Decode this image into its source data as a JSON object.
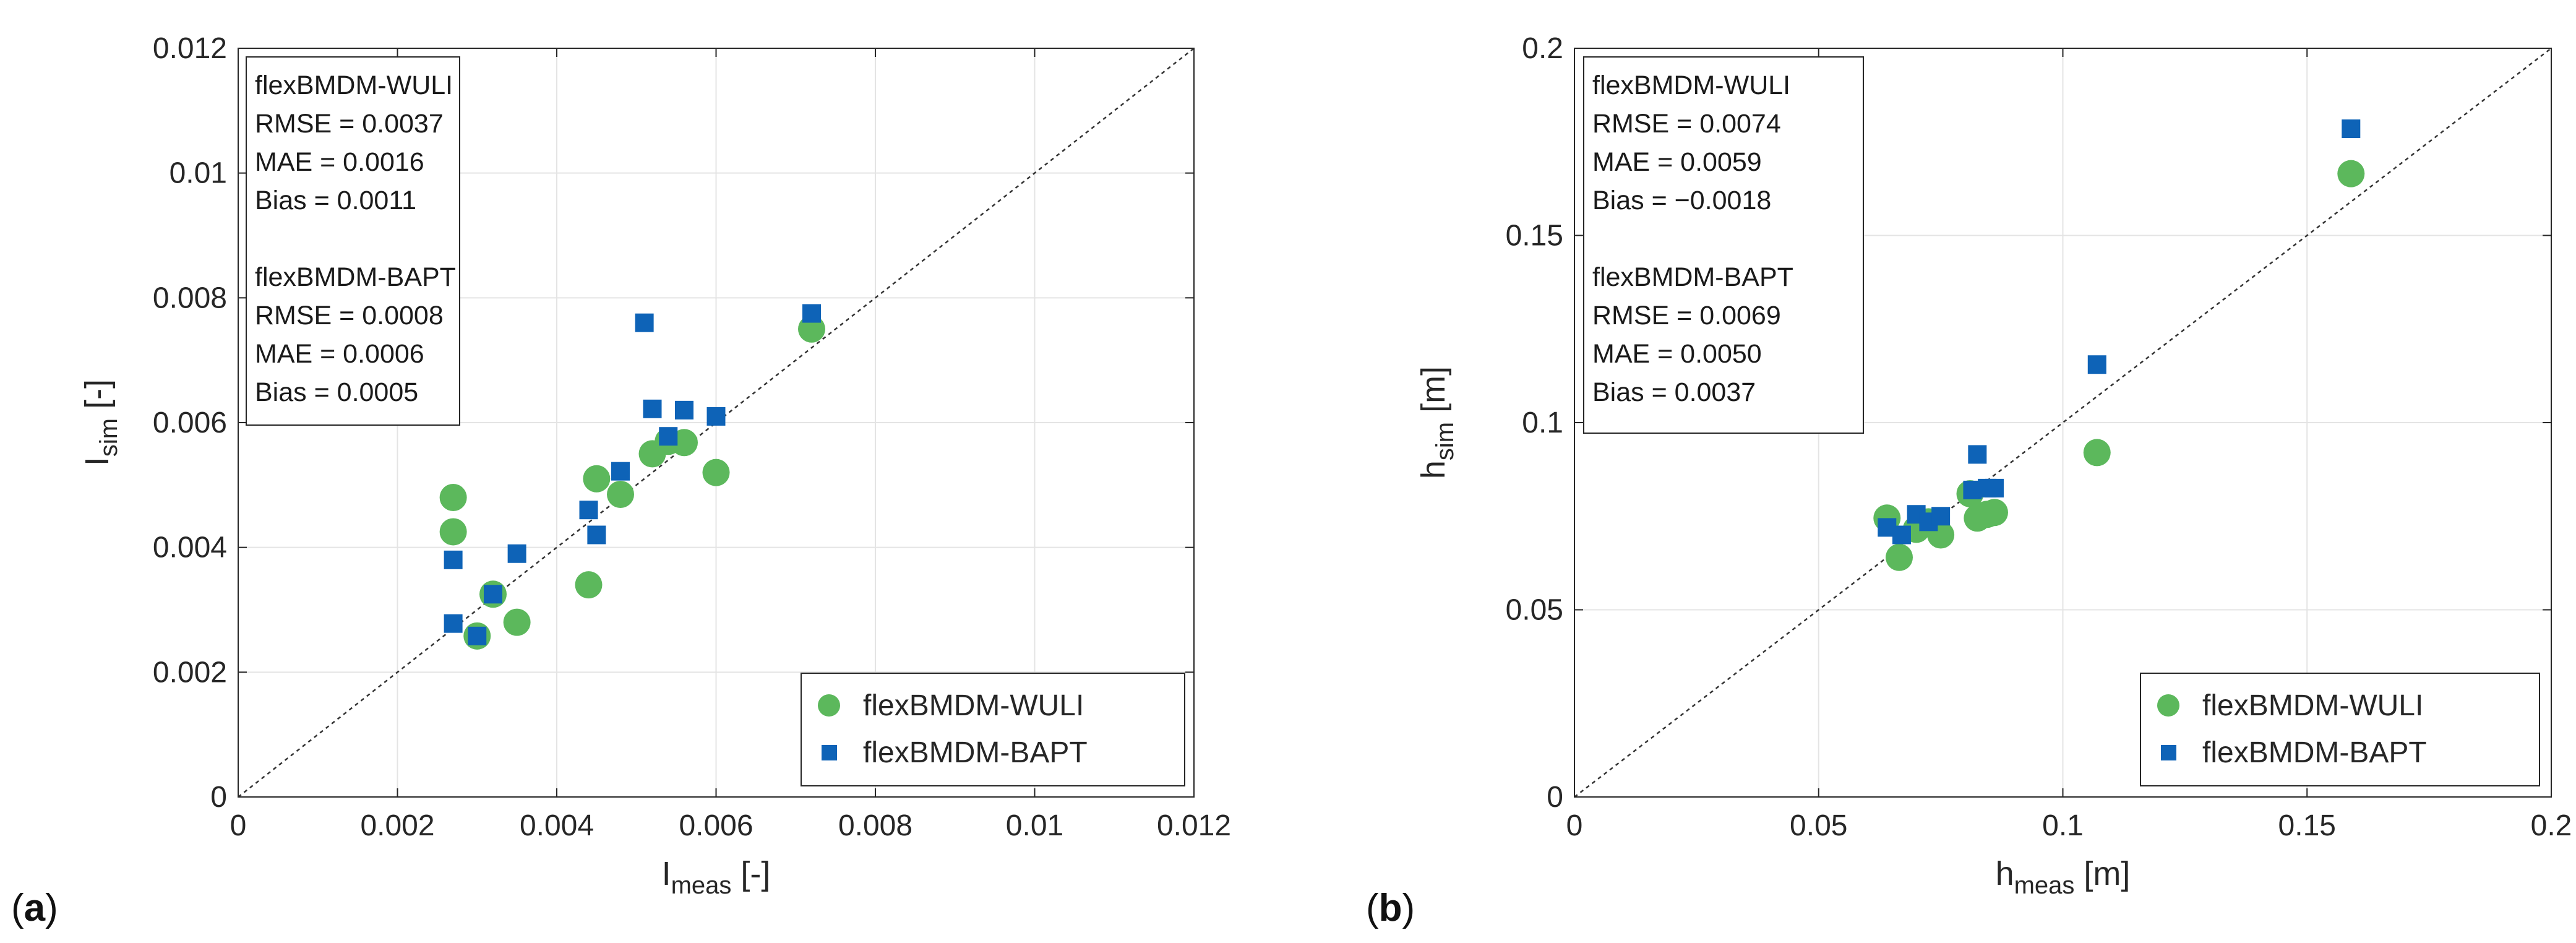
{
  "colors": {
    "wuli": "#5cb85c",
    "bapt": "#0e63b7",
    "grid": "#e4e4e4",
    "axis": "#262626",
    "diag": "#333333"
  },
  "labels": {
    "panel_a": "a",
    "panel_b": "b",
    "paren_open": "(",
    "paren_close": ")"
  },
  "chart_data": [
    {
      "type": "scatter",
      "panel": "a",
      "xlim": [
        0,
        0.012
      ],
      "ylim": [
        0,
        0.012
      ],
      "xticks": [
        "0",
        "0.002",
        "0.004",
        "0.006",
        "0.008",
        "0.01",
        "0.012"
      ],
      "yticks": [
        "0",
        "0.002",
        "0.004",
        "0.006",
        "0.008",
        "0.01",
        "0.012"
      ],
      "xlabel": {
        "base": "I",
        "sub": "meas",
        "unit": " [-]"
      },
      "ylabel": {
        "base": "I",
        "sub": "sim",
        "unit": " [-]"
      },
      "grid": true,
      "diagonal": "1:1 dashed",
      "stats": {
        "wuli_title": "flexBMDM-WULI",
        "wuli_rmse": "RMSE = 0.0037",
        "wuli_mae": "MAE  = 0.0016",
        "wuli_bias": "Bias = 0.0011",
        "bapt_title": "flexBMDM-BAPT",
        "bapt_rmse": "RMSE = 0.0008",
        "bapt_mae": "MAE  = 0.0006",
        "bapt_bias": "Bias = 0.0005"
      },
      "legend": {
        "placement": "bottom-right",
        "wuli": "flexBMDM-WULI",
        "bapt": "flexBMDM-BAPT"
      },
      "series": [
        {
          "name": "flexBMDM-WULI",
          "marker": "circle",
          "points": [
            [
              0.0027,
              0.0048
            ],
            [
              0.0027,
              0.00425
            ],
            [
              0.003,
              0.00258
            ],
            [
              0.0032,
              0.00325
            ],
            [
              0.0035,
              0.0028
            ],
            [
              0.0044,
              0.0034
            ],
            [
              0.0045,
              0.0051
            ],
            [
              0.0048,
              0.00485
            ],
            [
              0.0052,
              0.0055
            ],
            [
              0.0054,
              0.0057
            ],
            [
              0.0056,
              0.00568
            ],
            [
              0.006,
              0.0052
            ],
            [
              0.0072,
              0.0075
            ]
          ]
        },
        {
          "name": "flexBMDM-BAPT",
          "marker": "square",
          "points": [
            [
              0.0027,
              0.0038
            ],
            [
              0.0027,
              0.00278
            ],
            [
              0.003,
              0.00258
            ],
            [
              0.0032,
              0.00325
            ],
            [
              0.0035,
              0.0039
            ],
            [
              0.0044,
              0.0046
            ],
            [
              0.0045,
              0.0042
            ],
            [
              0.0048,
              0.00522
            ],
            [
              0.0051,
              0.0076
            ],
            [
              0.0052,
              0.00622
            ],
            [
              0.0054,
              0.00578
            ],
            [
              0.0056,
              0.0062
            ],
            [
              0.006,
              0.0061
            ],
            [
              0.0072,
              0.00775
            ]
          ]
        }
      ]
    },
    {
      "type": "scatter",
      "panel": "b",
      "xlim": [
        0,
        0.2
      ],
      "ylim": [
        0,
        0.2
      ],
      "xticks": [
        "0",
        "0.05",
        "0.1",
        "0.15",
        "0.2"
      ],
      "yticks": [
        "0",
        "0.05",
        "0.1",
        "0.15",
        "0.2"
      ],
      "xlabel": {
        "base": "h",
        "sub": "meas",
        "unit": " [m]"
      },
      "ylabel": {
        "base": "h",
        "sub": "sim",
        "unit": " [m]"
      },
      "grid": true,
      "diagonal": "1:1 dashed",
      "stats": {
        "wuli_title": "flexBMDM-WULI",
        "wuli_rmse": "RMSE = 0.0074",
        "wuli_mae": "MAE  = 0.0059",
        "wuli_bias": "Bias = −0.0018",
        "bapt_title": "flexBMDM-BAPT",
        "bapt_rmse": "RMSE = 0.0069",
        "bapt_mae": "MAE  = 0.0050",
        "bapt_bias": "Bias = 0.0037"
      },
      "legend": {
        "placement": "bottom-right",
        "wuli": "flexBMDM-WULI",
        "bapt": "flexBMDM-BAPT"
      },
      "series": [
        {
          "name": "flexBMDM-WULI",
          "marker": "circle",
          "points": [
            [
              0.064,
              0.0745
            ],
            [
              0.0665,
              0.064
            ],
            [
              0.07,
              0.0715
            ],
            [
              0.0725,
              0.0735
            ],
            [
              0.075,
              0.07
            ],
            [
              0.081,
              0.081
            ],
            [
              0.0825,
              0.0745
            ],
            [
              0.0845,
              0.0755
            ],
            [
              0.086,
              0.076
            ],
            [
              0.107,
              0.092
            ],
            [
              0.159,
              0.1665
            ]
          ]
        },
        {
          "name": "flexBMDM-BAPT",
          "marker": "square",
          "points": [
            [
              0.064,
              0.072
            ],
            [
              0.067,
              0.07
            ],
            [
              0.07,
              0.0755
            ],
            [
              0.0725,
              0.0735
            ],
            [
              0.075,
              0.075
            ],
            [
              0.0815,
              0.082
            ],
            [
              0.0825,
              0.0915
            ],
            [
              0.0845,
              0.0825
            ],
            [
              0.086,
              0.0825
            ],
            [
              0.107,
              0.1155
            ],
            [
              0.159,
              0.1785
            ]
          ]
        }
      ]
    }
  ]
}
